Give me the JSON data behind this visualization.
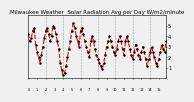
{
  "title": "Milwaukee Weather  Solar Radiation Avg per Day W/m2/minute",
  "line_color": "#dd0000",
  "line_style": "--",
  "line_width": 0.8,
  "marker": ".",
  "marker_size": 1.5,
  "background_color": "#f0f0f0",
  "grid_color": "#999999",
  "ylim": [
    0,
    6
  ],
  "yticks": [
    1,
    2,
    3,
    4,
    5
  ],
  "ytick_labels": [
    "1",
    "2",
    "3",
    "4",
    "5"
  ],
  "values": [
    4.2,
    3.5,
    3.8,
    4.5,
    4.8,
    3.2,
    2.5,
    2.0,
    1.5,
    2.2,
    3.0,
    3.8,
    4.5,
    4.8,
    4.2,
    3.5,
    4.0,
    5.0,
    4.8,
    4.2,
    3.5,
    2.8,
    1.5,
    0.8,
    0.3,
    0.5,
    1.2,
    2.0,
    2.8,
    3.5,
    4.5,
    5.2,
    4.8,
    4.0,
    3.5,
    3.0,
    4.5,
    4.8,
    4.2,
    3.5,
    3.0,
    2.5,
    2.0,
    3.5,
    4.0,
    3.5,
    2.8,
    2.2,
    1.8,
    1.5,
    1.2,
    0.9,
    1.5,
    2.2,
    3.0,
    3.5,
    4.0,
    3.5,
    3.0,
    2.5,
    2.2,
    2.8,
    3.5,
    4.0,
    3.5,
    2.8,
    2.2,
    3.5,
    4.0,
    3.5,
    2.8,
    2.2,
    1.8,
    2.5,
    3.2,
    2.8,
    2.2,
    1.8,
    2.5,
    3.0,
    2.5,
    1.8,
    1.2,
    1.8,
    2.5,
    3.0,
    2.5,
    2.0,
    1.5,
    1.2,
    1.8,
    2.5,
    3.2,
    2.8,
    2.5,
    3.5
  ],
  "vgrid_positions": [
    12,
    24,
    36,
    48,
    60,
    72,
    84
  ],
  "tick_label_size": 3.5,
  "title_fontsize": 4.0
}
